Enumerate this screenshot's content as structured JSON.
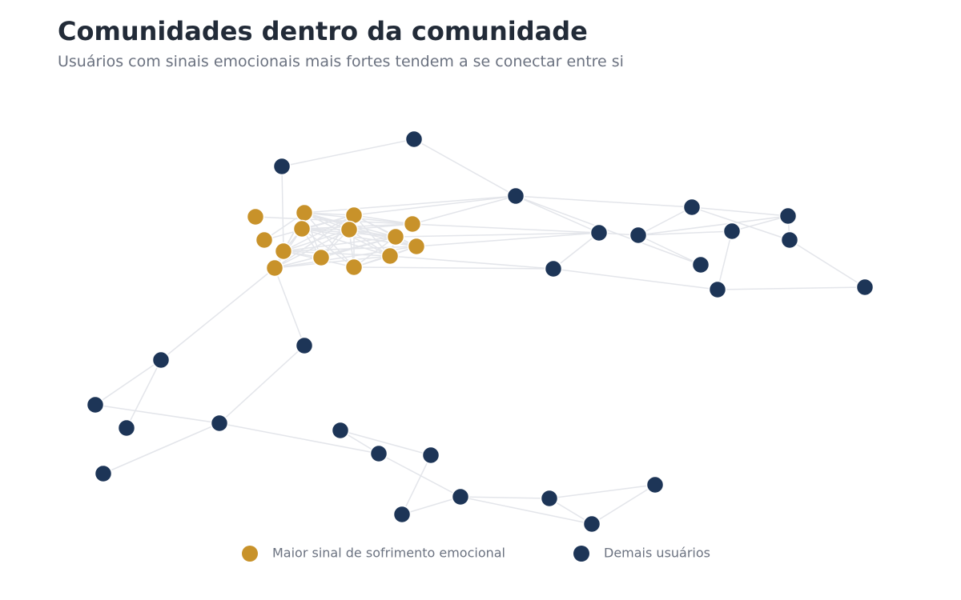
{
  "header": {
    "title": "Comunidades dentro da comunidade",
    "subtitle": "Usuários com sinais emocionais mais fortes tendem a se conectar entre si"
  },
  "legend": {
    "items": [
      {
        "label": "Maior sinal de sofrimento emocional",
        "color": "#c8922a"
      },
      {
        "label": "Demais usuários",
        "color": "#1d3557"
      }
    ]
  }
}
